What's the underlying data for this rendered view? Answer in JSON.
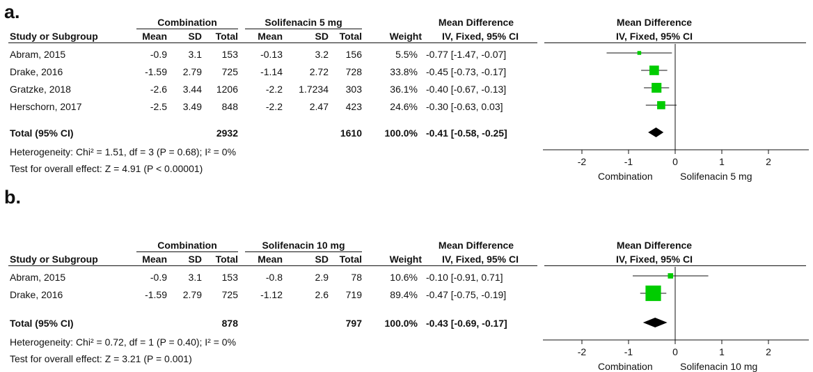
{
  "chart_data": [
    {
      "type": "forest",
      "panel_label": "a.",
      "groups": {
        "experimental": "Combination",
        "control": "Solifenacin 5 mg"
      },
      "headers": {
        "study": "Study or Subgroup",
        "mean": "Mean",
        "sd": "SD",
        "total": "Total",
        "weight": "Weight",
        "md_title": "Mean Difference",
        "md_sub": "IV, Fixed, 95% CI",
        "plot_title": "Mean Difference",
        "plot_sub": "IV, Fixed, 95% CI"
      },
      "studies": [
        {
          "study": "Abram, 2015",
          "exp_mean": "-0.9",
          "exp_sd": "3.1",
          "exp_total": "153",
          "ctl_mean": "-0.13",
          "ctl_sd": "3.2",
          "ctl_total": "156",
          "weight": "5.5%",
          "ci_text": "-0.77 [-1.47, -0.07]",
          "md": -0.77,
          "lo": -1.47,
          "hi": -0.07,
          "w": 5.5
        },
        {
          "study": "Drake, 2016",
          "exp_mean": "-1.59",
          "exp_sd": "2.79",
          "exp_total": "725",
          "ctl_mean": "-1.14",
          "ctl_sd": "2.72",
          "ctl_total": "728",
          "weight": "33.8%",
          "ci_text": "-0.45 [-0.73, -0.17]",
          "md": -0.45,
          "lo": -0.73,
          "hi": -0.17,
          "w": 33.8
        },
        {
          "study": "Gratzke, 2018",
          "exp_mean": "-2.6",
          "exp_sd": "3.44",
          "exp_total": "1206",
          "ctl_mean": "-2.2",
          "ctl_sd": "1.7234",
          "ctl_total": "303",
          "weight": "36.1%",
          "ci_text": "-0.40 [-0.67, -0.13]",
          "md": -0.4,
          "lo": -0.67,
          "hi": -0.13,
          "w": 36.1
        },
        {
          "study": "Herschorn, 2017",
          "exp_mean": "-2.5",
          "exp_sd": "3.49",
          "exp_total": "848",
          "ctl_mean": "-2.2",
          "ctl_sd": "2.47",
          "ctl_total": "423",
          "weight": "24.6%",
          "ci_text": "-0.30 [-0.63, 0.03]",
          "md": -0.3,
          "lo": -0.63,
          "hi": 0.03,
          "w": 24.6
        }
      ],
      "total": {
        "label": "Total (95% CI)",
        "exp_total": "2932",
        "ctl_total": "1610",
        "weight": "100.0%",
        "ci_text": "-0.41 [-0.58, -0.25]",
        "md": -0.41,
        "lo": -0.58,
        "hi": -0.25
      },
      "heterogeneity": "Heterogeneity: Chi² = 1.51, df = 3 (P = 0.68); I² = 0%",
      "overall_effect": "Test for overall effect: Z = 4.91 (P < 0.00001)",
      "xaxis": {
        "ticks": [
          -2,
          -1,
          0,
          1,
          2
        ],
        "tick_labels": [
          "-2",
          "-1",
          "0",
          "1",
          "2"
        ],
        "xlim": [
          -2,
          2
        ],
        "left_label": "Combination",
        "right_label": "Solifenacin 5 mg"
      },
      "marker_color": "#00cc00"
    },
    {
      "type": "forest",
      "panel_label": "b.",
      "groups": {
        "experimental": "Combination",
        "control": "Solifenacin 10 mg"
      },
      "headers": {
        "study": "Study or Subgroup",
        "mean": "Mean",
        "sd": "SD",
        "total": "Total",
        "weight": "Weight",
        "md_title": "Mean Difference",
        "md_sub": "IV, Fixed, 95% CI",
        "plot_title": "Mean Difference",
        "plot_sub": "IV, Fixed, 95% CI"
      },
      "studies": [
        {
          "study": "Abram, 2015",
          "exp_mean": "-0.9",
          "exp_sd": "3.1",
          "exp_total": "153",
          "ctl_mean": "-0.8",
          "ctl_sd": "2.9",
          "ctl_total": "78",
          "weight": "10.6%",
          "ci_text": "-0.10 [-0.91, 0.71]",
          "md": -0.1,
          "lo": -0.91,
          "hi": 0.71,
          "w": 10.6
        },
        {
          "study": "Drake, 2016",
          "exp_mean": "-1.59",
          "exp_sd": "2.79",
          "exp_total": "725",
          "ctl_mean": "-1.12",
          "ctl_sd": "2.6",
          "ctl_total": "719",
          "weight": "89.4%",
          "ci_text": "-0.47 [-0.75, -0.19]",
          "md": -0.47,
          "lo": -0.75,
          "hi": -0.19,
          "w": 89.4
        }
      ],
      "total": {
        "label": "Total (95% CI)",
        "exp_total": "878",
        "ctl_total": "797",
        "weight": "100.0%",
        "ci_text": "-0.43 [-0.69, -0.17]",
        "md": -0.43,
        "lo": -0.69,
        "hi": -0.17
      },
      "heterogeneity": "Heterogeneity: Chi² = 0.72, df = 1 (P = 0.40); I² = 0%",
      "overall_effect": "Test for overall effect: Z = 3.21 (P = 0.001)",
      "xaxis": {
        "ticks": [
          -2,
          -1,
          0,
          1,
          2
        ],
        "tick_labels": [
          "-2",
          "-1",
          "0",
          "1",
          "2"
        ],
        "xlim": [
          -2,
          2
        ],
        "left_label": "Combination",
        "right_label": "Solifenacin 10 mg"
      },
      "marker_color": "#00cc00"
    }
  ]
}
